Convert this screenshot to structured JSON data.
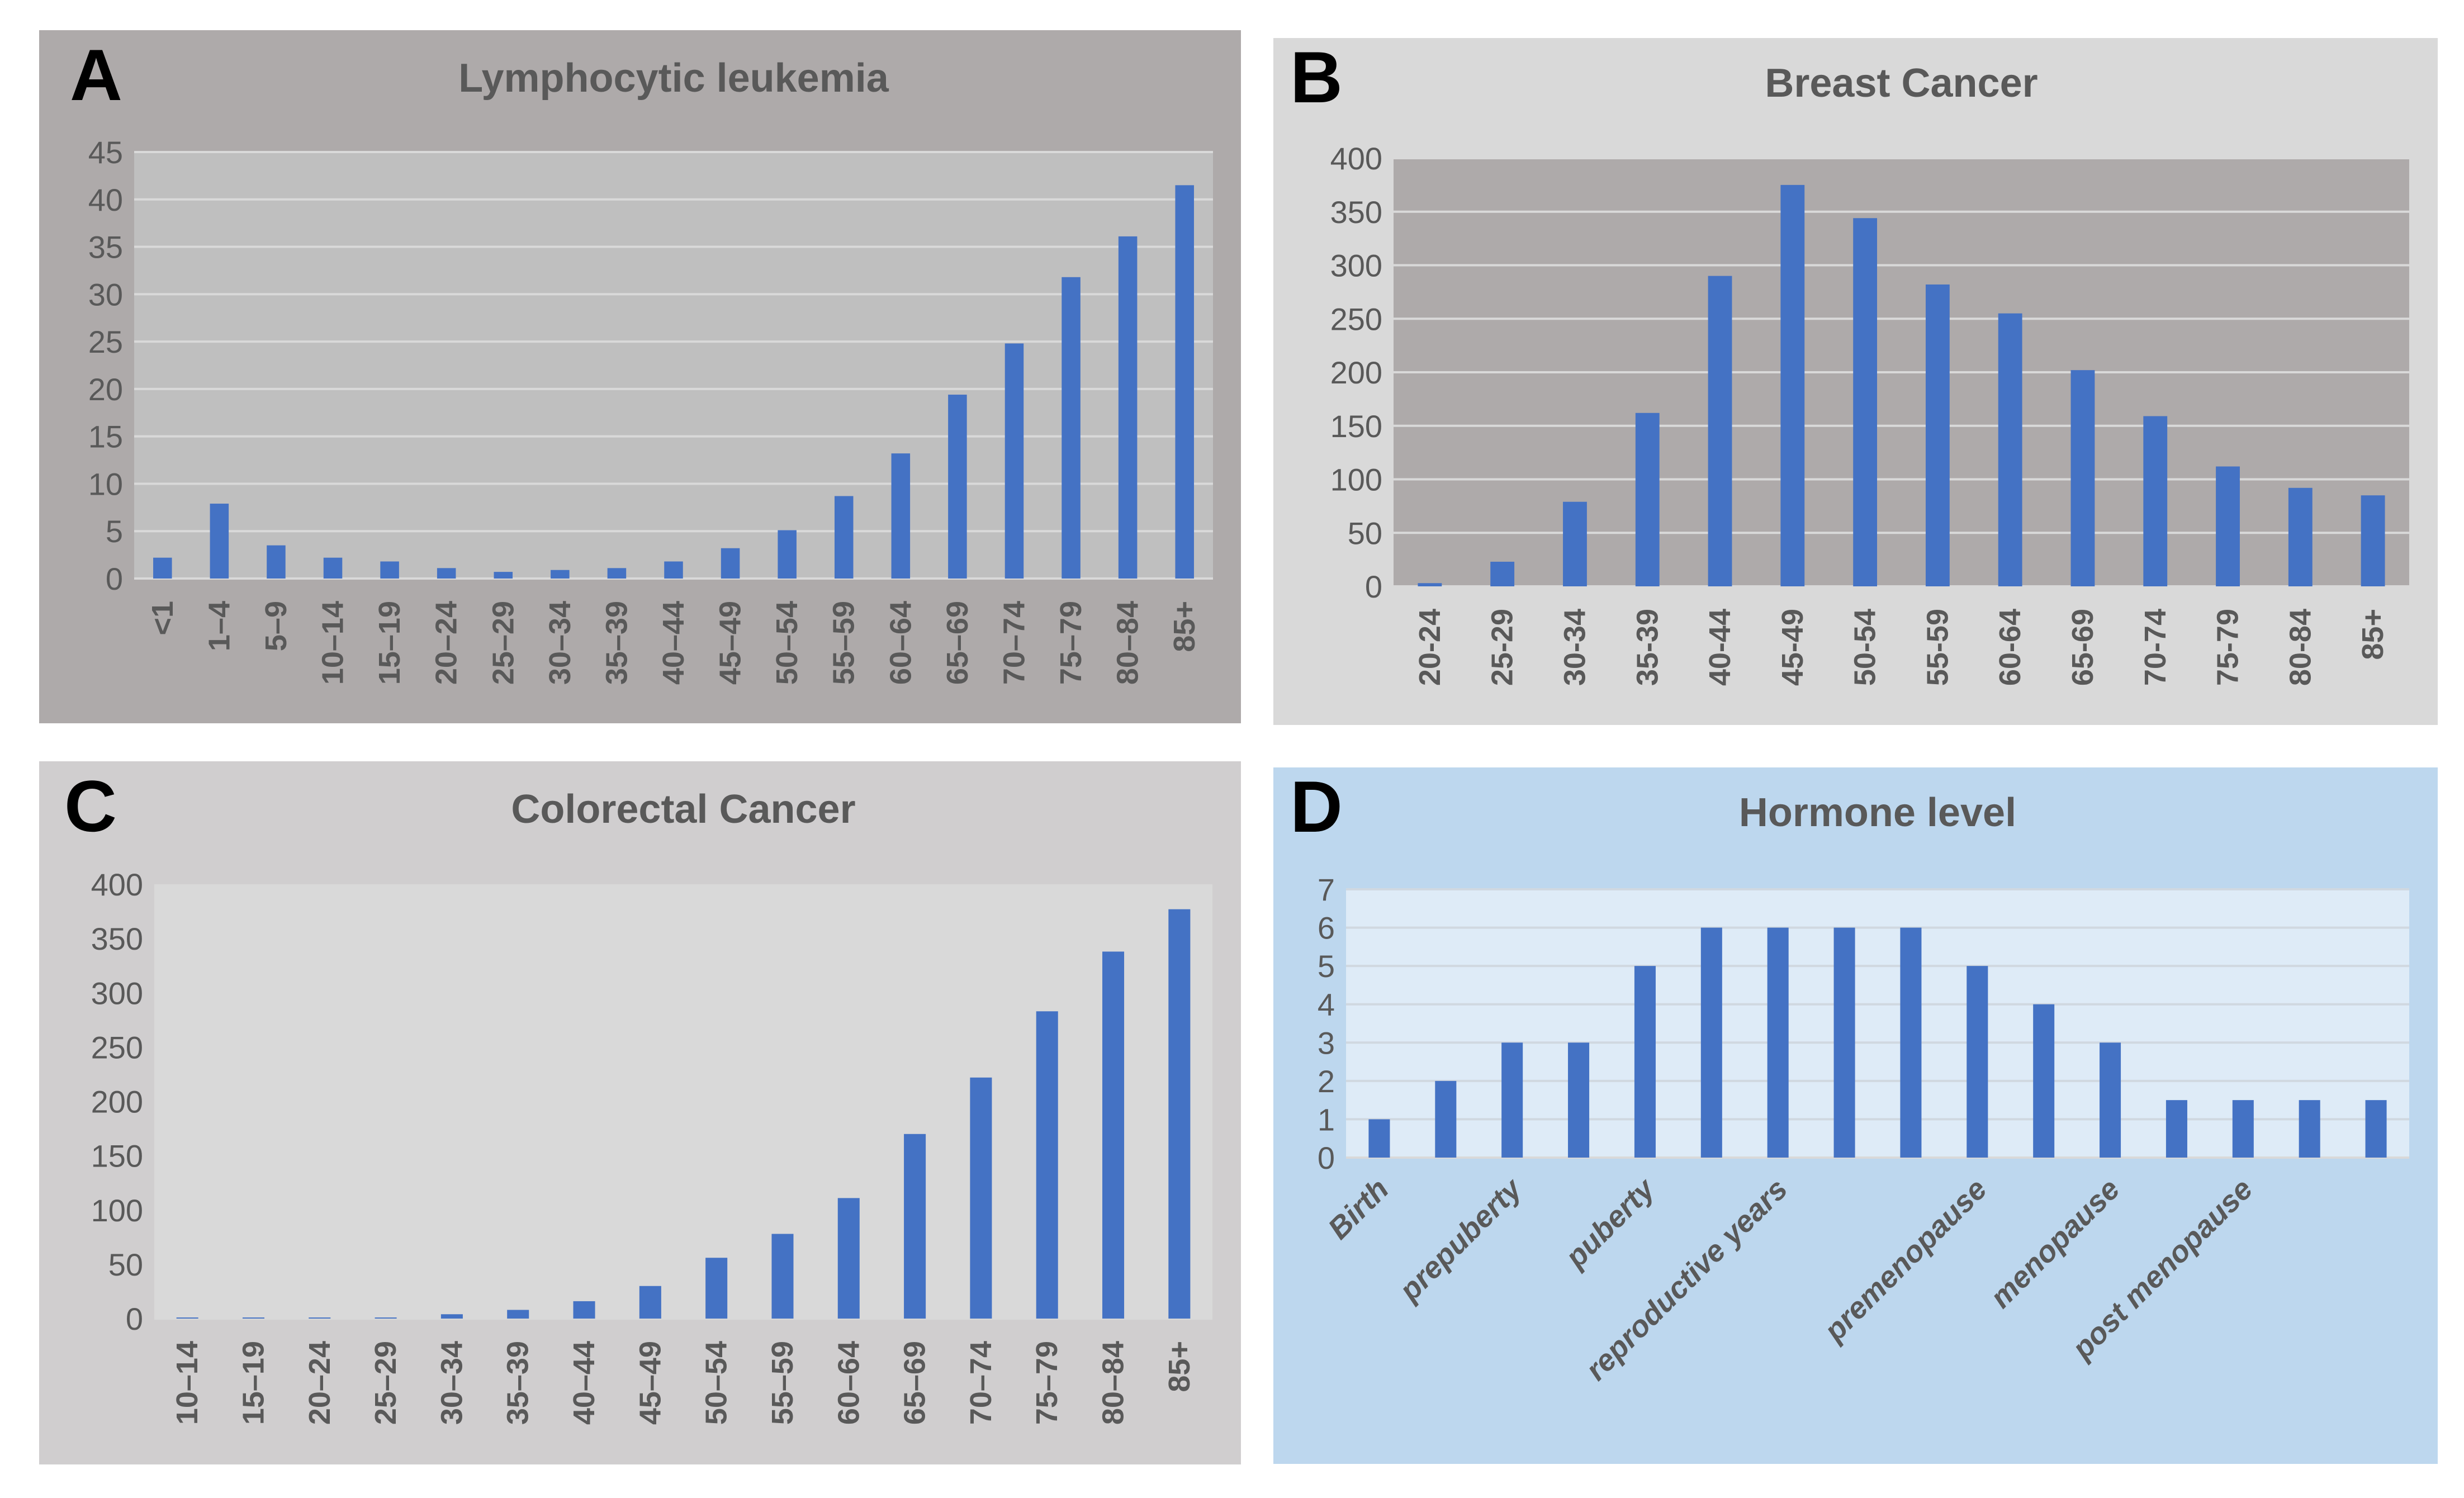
{
  "chart_data": [
    {
      "panel_label": "A",
      "type": "bar",
      "title": "Lymphocytic leukemia",
      "xlabel": "",
      "ylabel": "",
      "ylim": [
        0,
        45
      ],
      "yticks": [
        0,
        5,
        10,
        15,
        20,
        25,
        30,
        35,
        40,
        45
      ],
      "grid": true,
      "categories": [
        "<1",
        "1–4",
        "5–9",
        "10–14",
        "15–19",
        "20–24",
        "25–29",
        "30–34",
        "35–39",
        "40–44",
        "45–49",
        "50–54",
        "55–59",
        "60–64",
        "65–69",
        "70–74",
        "75–79",
        "80–84",
        "85+"
      ],
      "values": [
        2.2,
        7.9,
        3.5,
        2.2,
        1.8,
        1.1,
        0.7,
        0.9,
        1.1,
        1.8,
        3.2,
        5.1,
        8.7,
        13.2,
        19.4,
        24.8,
        31.8,
        36.1,
        41.5
      ],
      "colors": {
        "panel": "#aeaaaa",
        "plot": "#bfbfbf",
        "bar": "#4472c4",
        "grid": "#d9d9d9"
      }
    },
    {
      "panel_label": "B",
      "type": "bar",
      "title": "Breast Cancer",
      "xlabel": "",
      "ylabel": "",
      "ylim": [
        0,
        400
      ],
      "yticks": [
        0,
        50,
        100,
        150,
        200,
        250,
        300,
        350,
        400
      ],
      "grid": true,
      "categories": [
        "20-24",
        "25-29",
        "30-34",
        "35-39",
        "40-44",
        "45-49",
        "50-54",
        "55-59",
        "60-64",
        "65-69",
        "70-74",
        "75-79",
        "80-84",
        "85+"
      ],
      "values": [
        3,
        23,
        79,
        162,
        290,
        375,
        344,
        282,
        255,
        202,
        159,
        112,
        92,
        85
      ],
      "colors": {
        "panel": "#d9d9d9",
        "plot": "#aeaaaa",
        "bar": "#4472c4",
        "grid": "#d9d9d9"
      }
    },
    {
      "panel_label": "C",
      "type": "bar",
      "title": "Colorectal Cancer",
      "xlabel": "",
      "ylabel": "",
      "ylim": [
        0,
        400
      ],
      "yticks": [
        0,
        50,
        100,
        150,
        200,
        250,
        300,
        350,
        400
      ],
      "grid": false,
      "categories": [
        "10–14",
        "15–19",
        "20–24",
        "25–29",
        "30–34",
        "35–39",
        "40–44",
        "45–49",
        "50–54",
        "55–59",
        "60–64",
        "65–69",
        "70–74",
        "75–79",
        "80–84",
        "85+"
      ],
      "values": [
        1,
        1,
        1,
        1,
        4,
        8,
        16,
        30,
        56,
        78,
        111,
        170,
        222,
        283,
        338,
        377
      ],
      "colors": {
        "panel": "#d0cecf",
        "plot": "#d9d9d9",
        "bar": "#4472c4",
        "grid": "#d9d9d9"
      }
    },
    {
      "panel_label": "D",
      "type": "bar",
      "title": "Hormone level",
      "xlabel": "",
      "ylabel": "",
      "ylim": [
        0,
        7
      ],
      "yticks": [
        0,
        1,
        2,
        3,
        4,
        5,
        6,
        7
      ],
      "grid": true,
      "categories": [
        "Birth",
        "",
        "prepuberty",
        "",
        "puberty",
        "",
        "reproductive years",
        "",
        "",
        "premenopause",
        "",
        "menopause",
        "",
        "post menopause",
        "",
        ""
      ],
      "values": [
        1,
        2,
        3,
        3,
        5,
        6,
        6,
        6,
        6,
        5,
        4,
        3,
        1.5,
        1.5,
        1.5,
        1.5
      ],
      "colors": {
        "panel": "#bdd7ee",
        "plot": "#deebf7",
        "bar": "#4472c4",
        "grid": "#d0d8e0"
      }
    }
  ]
}
